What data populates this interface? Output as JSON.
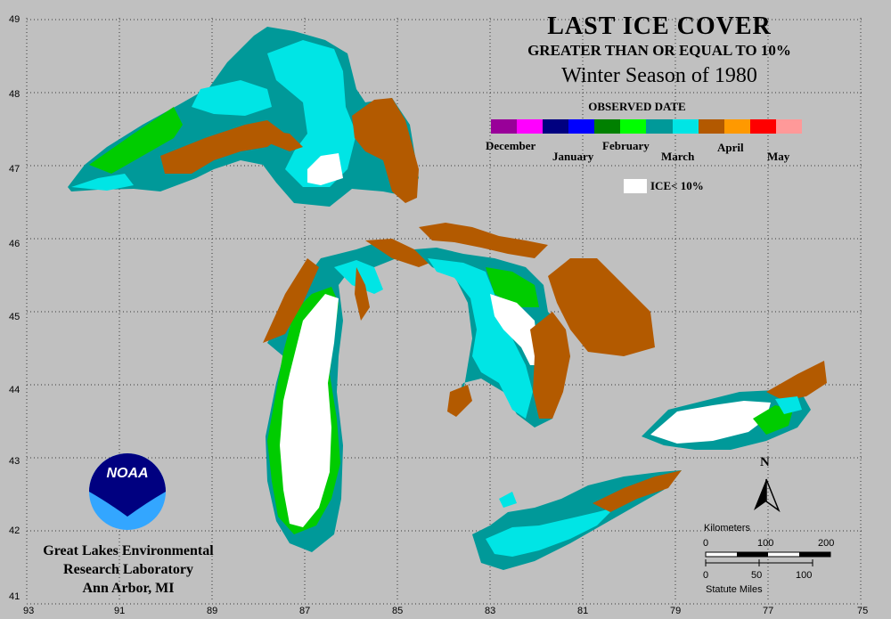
{
  "title": {
    "line1": "LAST ICE COVER",
    "line2": "GREATER THAN OR EQUAL TO 10%",
    "line3": "Winter Season of 1980"
  },
  "legend": {
    "heading": "OBSERVED DATE",
    "months": [
      "December",
      "January",
      "February",
      "March",
      "April",
      "May"
    ],
    "swatch_colors": [
      "#990099",
      "#ff00ff",
      "#000080",
      "#0000ff",
      "#008000",
      "#00ff00",
      "#009999",
      "#00e5e5",
      "#b35900",
      "#ff9900",
      "#ff0000",
      "#ff9999"
    ],
    "ice_label": "ICE< 10%"
  },
  "colors": {
    "background": "#c0c0c0",
    "march_dark": "#009999",
    "march_light": "#00e5e5",
    "february": "#00cc00",
    "february_dark": "#009900",
    "april": "#b35a00",
    "ice_under_10": "#ffffff",
    "noaa_blue": "#000080",
    "noaa_light": "#33a6ff"
  },
  "axes": {
    "latitude_labels": [
      "49",
      "48",
      "47",
      "46",
      "45",
      "44",
      "43",
      "42",
      "41"
    ],
    "longitude_labels": [
      "93",
      "91",
      "89",
      "87",
      "85",
      "83",
      "81",
      "79",
      "77",
      "75"
    ]
  },
  "scale": {
    "km_title": "Kilometers",
    "km_ticks": [
      "0",
      "100",
      "200"
    ],
    "mi_ticks": [
      "0",
      "50",
      "100"
    ],
    "mi_title": "Statute Miles"
  },
  "north_label": "N",
  "logo": {
    "text": "NOAA"
  },
  "lab": {
    "line1": "Great Lakes Environmental",
    "line2": "Research Laboratory",
    "line3": "Ann Arbor, MI"
  }
}
